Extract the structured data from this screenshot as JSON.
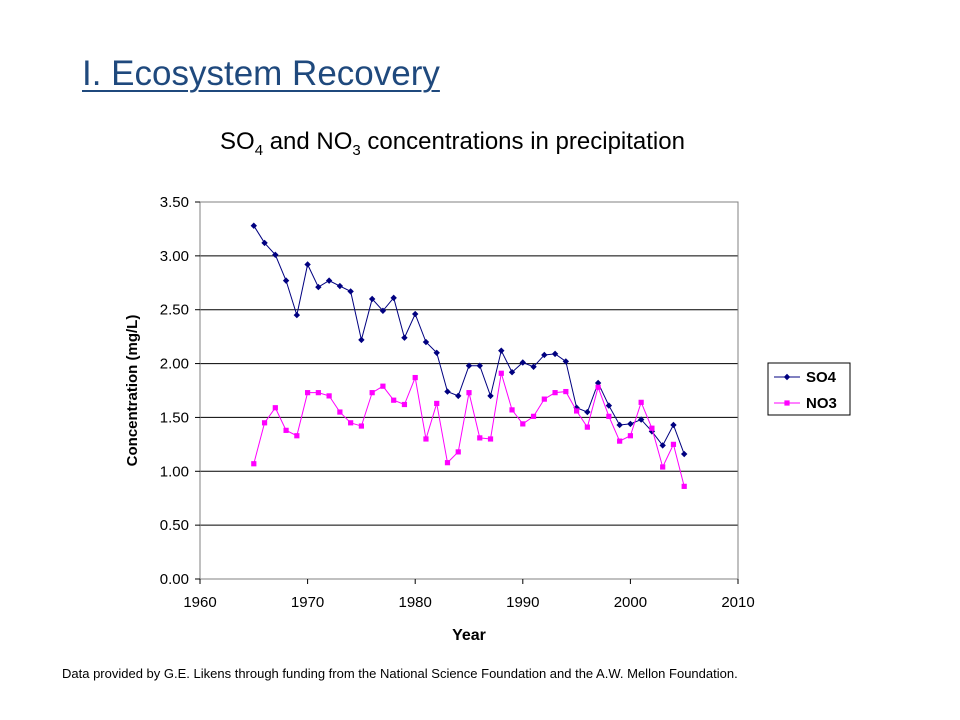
{
  "slide": {
    "title": "I. Ecosystem Recovery",
    "footnote": "Data provided by G.E.  Likens through funding from the National Science Foundation and the A.W. Mellon Foundation."
  },
  "chart_data": {
    "type": "line",
    "title_parts": {
      "p1": "SO",
      "s1": "4",
      "p2": " and NO",
      "s2": "3",
      "p3": " concentrations in precipitation"
    },
    "xlabel": "Year",
    "ylabel": "Concentration (mg/L)",
    "xlim": [
      1960,
      2010
    ],
    "ylim": [
      0,
      3.5
    ],
    "x_ticks": [
      "1960",
      "1970",
      "1980",
      "1990",
      "2000",
      "2010"
    ],
    "x_tick_values": [
      1960,
      1970,
      1980,
      1990,
      2000,
      2010
    ],
    "y_ticks": [
      "0.00",
      "0.50",
      "1.00",
      "1.50",
      "2.00",
      "2.50",
      "3.00",
      "3.50"
    ],
    "y_tick_values": [
      0,
      0.5,
      1.0,
      1.5,
      2.0,
      2.5,
      3.0,
      3.5
    ],
    "grid": "horizontal",
    "legend_position": "right",
    "x": [
      1965,
      1966,
      1967,
      1968,
      1969,
      1970,
      1971,
      1972,
      1973,
      1974,
      1975,
      1976,
      1977,
      1978,
      1979,
      1980,
      1981,
      1982,
      1983,
      1984,
      1985,
      1986,
      1987,
      1988,
      1989,
      1990,
      1991,
      1992,
      1993,
      1994,
      1995,
      1996,
      1997,
      1998,
      1999,
      2000,
      2001,
      2002,
      2003,
      2004,
      2005
    ],
    "series": [
      {
        "name": "SO4",
        "color": "#000080",
        "marker": "diamond",
        "values": [
          3.28,
          3.12,
          3.01,
          2.77,
          2.45,
          2.92,
          2.71,
          2.77,
          2.72,
          2.67,
          2.22,
          2.6,
          2.49,
          2.61,
          2.24,
          2.46,
          2.2,
          2.1,
          1.74,
          1.7,
          1.98,
          1.98,
          1.7,
          2.12,
          1.92,
          2.01,
          1.97,
          2.08,
          2.09,
          2.02,
          1.59,
          1.55,
          1.82,
          1.61,
          1.43,
          1.44,
          1.48,
          1.37,
          1.24,
          1.43,
          1.16
        ]
      },
      {
        "name": "NO3",
        "color": "#ff00ff",
        "marker": "square",
        "values": [
          1.07,
          1.45,
          1.59,
          1.38,
          1.33,
          1.73,
          1.73,
          1.7,
          1.55,
          1.45,
          1.42,
          1.73,
          1.79,
          1.66,
          1.62,
          1.87,
          1.3,
          1.63,
          1.08,
          1.18,
          1.73,
          1.31,
          1.3,
          1.91,
          1.57,
          1.44,
          1.51,
          1.67,
          1.73,
          1.74,
          1.56,
          1.41,
          1.78,
          1.51,
          1.28,
          1.33,
          1.64,
          1.4,
          1.04,
          1.25,
          0.86
        ]
      }
    ]
  }
}
